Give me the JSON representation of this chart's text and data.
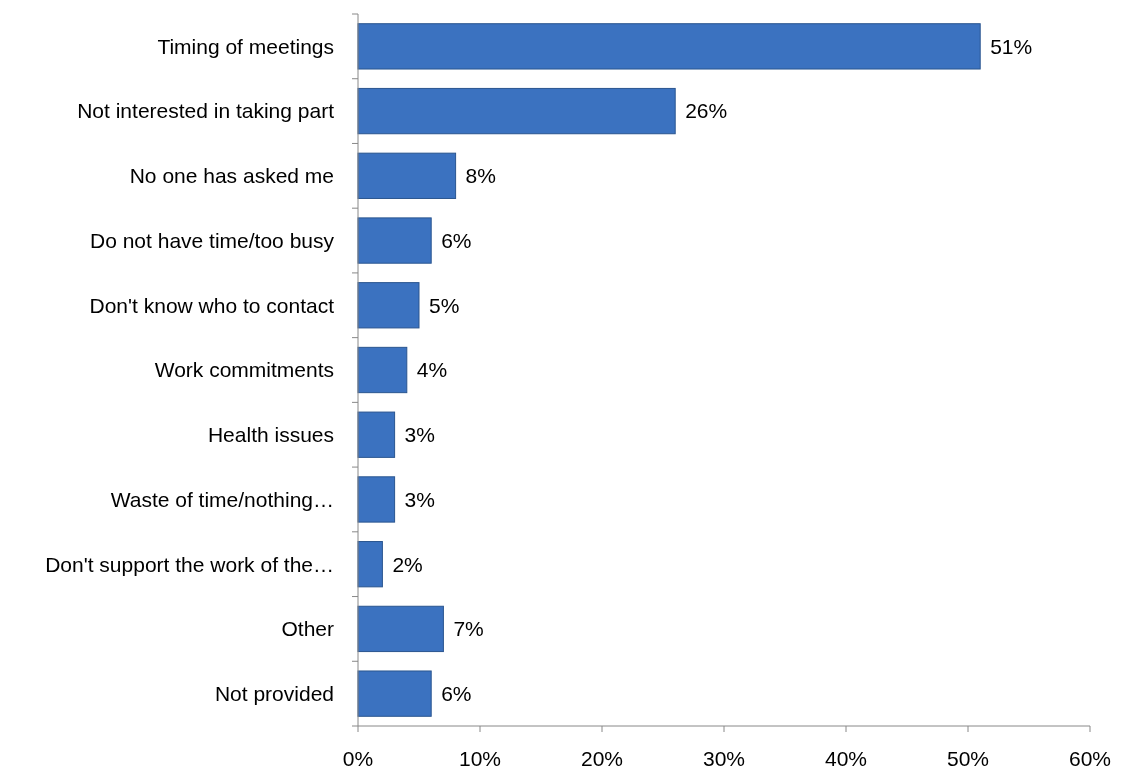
{
  "chart_data": {
    "type": "bar",
    "orientation": "horizontal",
    "categories": [
      "Timing of meetings",
      "Not interested in taking part",
      "No one has asked me",
      "Do not have time/too busy",
      "Don't know who to contact",
      "Work commitments",
      "Health issues",
      "Waste of time/nothing…",
      "Don't support the work of the…",
      "Other",
      "Not provided"
    ],
    "values": [
      51,
      26,
      8,
      6,
      5,
      4,
      3,
      3,
      2,
      7,
      6
    ],
    "value_labels": [
      "51%",
      "26%",
      "8%",
      "6%",
      "5%",
      "4%",
      "3%",
      "3%",
      "2%",
      "7%",
      "6%"
    ],
    "color": "#3b72c0",
    "xlim": [
      0,
      60
    ],
    "xticks": [
      {
        "value": 0,
        "label": "0%"
      },
      {
        "value": 10,
        "label": "10%"
      },
      {
        "value": 20,
        "label": "20%"
      },
      {
        "value": 30,
        "label": "30%"
      },
      {
        "value": 40,
        "label": "40%"
      },
      {
        "value": 50,
        "label": "50%"
      },
      {
        "value": 60,
        "label": "60%"
      }
    ],
    "tick_labels": true
  }
}
